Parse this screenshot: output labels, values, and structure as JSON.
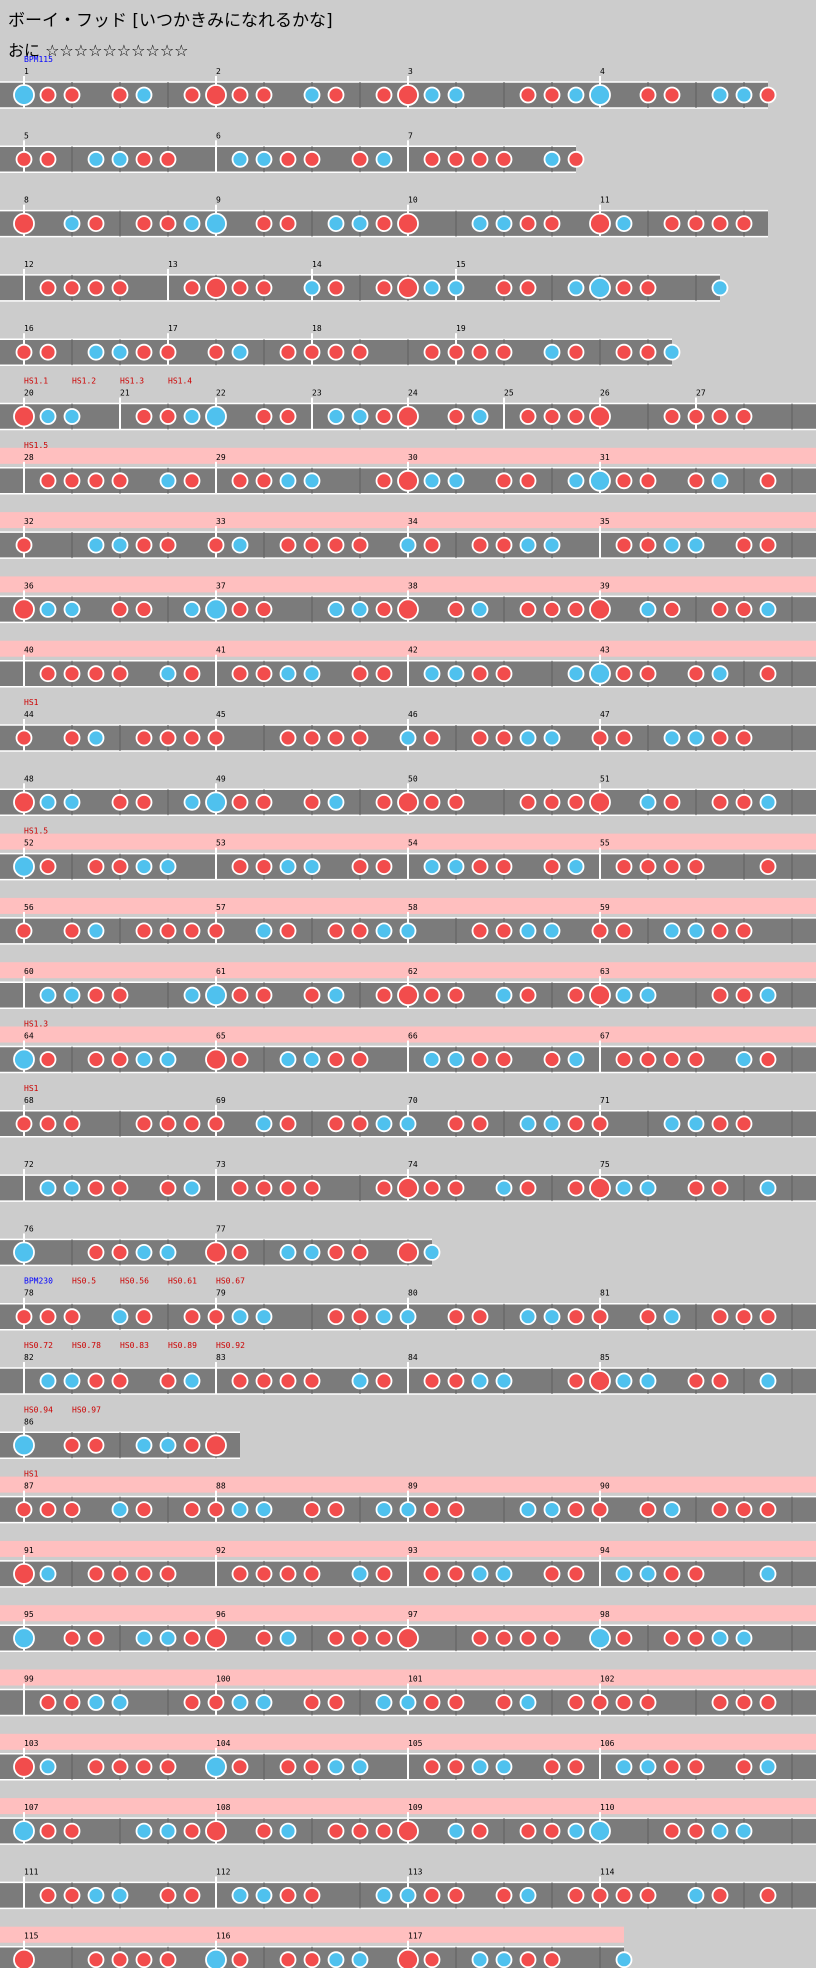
{
  "title": "ボーイ・フッド [いつかきみになれるかな]",
  "difficulty": "おに ☆☆☆☆☆☆☆☆☆☆",
  "colors": {
    "don": "#f24c4c",
    "ka": "#4fc1ee",
    "lane": "#7b7b7b",
    "gogo": "#ffbfbf"
  },
  "rows": [
    {
      "len": 16,
      "gogo": false,
      "measures": [
        1,
        2,
        3,
        4
      ],
      "labels": [
        "BPM115"
      ]
    },
    {
      "len": 12,
      "gogo": false,
      "measures": [
        5,
        6,
        7
      ]
    },
    {
      "len": 16,
      "gogo": false,
      "measures": [
        8,
        9,
        10,
        11
      ]
    },
    {
      "len": 15,
      "gogo": false,
      "measures": [
        12,
        13,
        14,
        15
      ]
    },
    {
      "len": 14,
      "gogo": false,
      "measures": [
        16,
        17,
        18,
        19
      ]
    },
    {
      "len": 17,
      "gogo": false,
      "measures": [
        20,
        21,
        22,
        23,
        24,
        25,
        26,
        27
      ],
      "labels": [
        "HS1.1",
        "HS1.2",
        "HS1.3",
        "HS1.4"
      ]
    },
    {
      "len": 17,
      "gogo": true,
      "measures": [
        28,
        29,
        30,
        31
      ],
      "labels": [
        "HS1.5"
      ]
    },
    {
      "len": 17,
      "gogo": true,
      "measures": [
        32,
        33,
        34,
        35
      ]
    },
    {
      "len": 17,
      "gogo": true,
      "measures": [
        36,
        37,
        38,
        39
      ]
    },
    {
      "len": 17,
      "gogo": true,
      "measures": [
        40,
        41,
        42,
        43
      ]
    },
    {
      "len": 17,
      "gogo": false,
      "measures": [
        44,
        45,
        46,
        47
      ],
      "labels": [
        "HS1"
      ]
    },
    {
      "len": 17,
      "gogo": false,
      "measures": [
        48,
        49,
        50,
        51
      ]
    },
    {
      "len": 17,
      "gogo": true,
      "measures": [
        52,
        53,
        54,
        55
      ],
      "labels": [
        "HS1.5"
      ]
    },
    {
      "len": 17,
      "gogo": true,
      "measures": [
        56,
        57,
        58,
        59
      ]
    },
    {
      "len": 17,
      "gogo": true,
      "measures": [
        60,
        61,
        62,
        63
      ]
    },
    {
      "len": 17,
      "gogo": true,
      "measures": [
        64,
        65,
        66,
        67
      ],
      "labels": [
        "HS1.3"
      ]
    },
    {
      "len": 17,
      "gogo": false,
      "measures": [
        68,
        69,
        70,
        71
      ],
      "labels": [
        "HS1"
      ]
    },
    {
      "len": 17,
      "gogo": false,
      "measures": [
        72,
        73,
        74,
        75
      ]
    },
    {
      "len": 9,
      "gogo": false,
      "measures": [
        76,
        77
      ]
    },
    {
      "len": 17,
      "gogo": false,
      "measures": [
        78,
        79,
        80,
        81
      ],
      "labels": [
        "BPM230",
        "HS0.5",
        "HS0.56",
        "HS0.61",
        "HS0.67"
      ]
    },
    {
      "len": 17,
      "gogo": false,
      "measures": [
        82,
        83,
        84,
        85
      ],
      "labels": [
        "HS0.72",
        "HS0.78",
        "HS0.83",
        "HS0.89",
        "HS0.92"
      ]
    },
    {
      "len": 5,
      "gogo": false,
      "measures": [
        86
      ],
      "labels": [
        "HS0.94",
        "HS0.97"
      ]
    },
    {
      "len": 17,
      "gogo": true,
      "measures": [
        87,
        88,
        89,
        90
      ],
      "labels": [
        "HS1"
      ]
    },
    {
      "len": 17,
      "gogo": true,
      "measures": [
        91,
        92,
        93,
        94
      ]
    },
    {
      "len": 17,
      "gogo": true,
      "measures": [
        95,
        96,
        97,
        98
      ]
    },
    {
      "len": 17,
      "gogo": true,
      "measures": [
        99,
        100,
        101,
        102
      ]
    },
    {
      "len": 17,
      "gogo": true,
      "measures": [
        103,
        104,
        105,
        106
      ]
    },
    {
      "len": 17,
      "gogo": true,
      "measures": [
        107,
        108,
        109,
        110
      ]
    },
    {
      "len": 17,
      "gogo": false,
      "measures": [
        111,
        112,
        113,
        114
      ]
    },
    {
      "len": 13,
      "gogo": true,
      "measures": [
        115,
        116,
        117
      ]
    }
  ]
}
